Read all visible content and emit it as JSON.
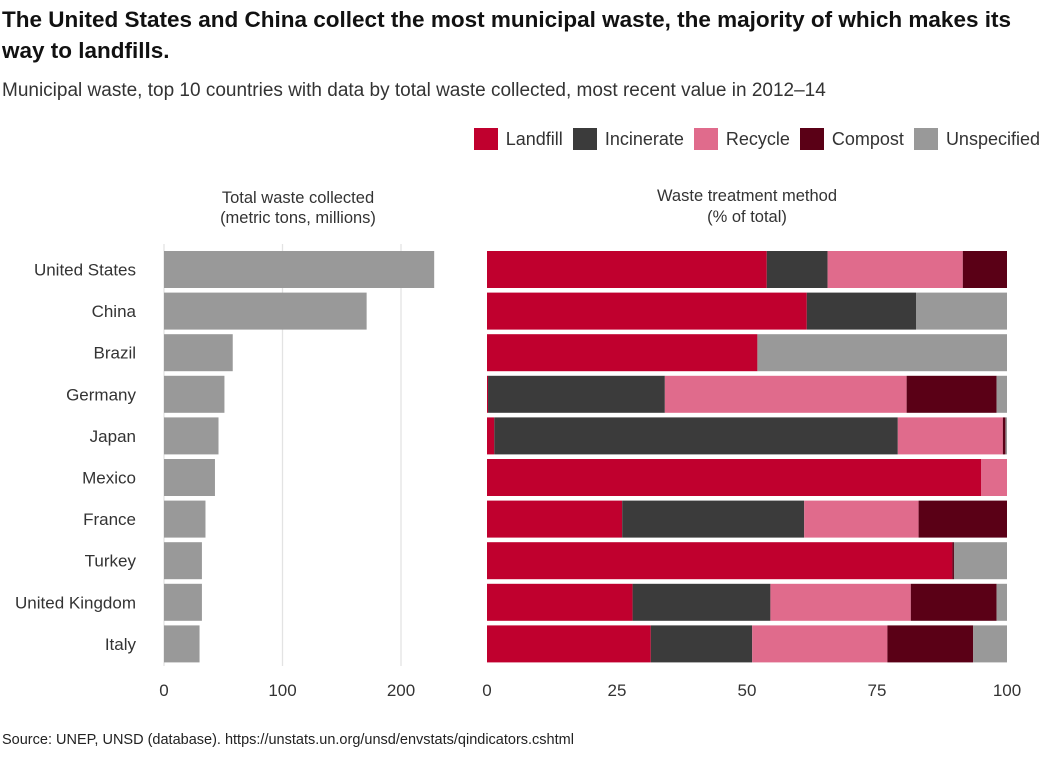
{
  "title": "The United States and China collect the most municipal waste, the majority of which makes its way to landfills.",
  "subtitle": "Municipal waste, top 10 countries with data by total waste collected, most recent value in 2012–14",
  "source": "Source: UNEP, UNSD (database). https://unstats.un.org/unsd/envstats/qindicators.cshtml",
  "legend": [
    {
      "label": "Landfill",
      "color": "#c0002e"
    },
    {
      "label": "Incinerate",
      "color": "#3b3b3b"
    },
    {
      "label": "Recycle",
      "color": "#e06b8c"
    },
    {
      "label": "Compost",
      "color": "#5a0016"
    },
    {
      "label": "Unspecified",
      "color": "#999999"
    }
  ],
  "chart_data": [
    {
      "type": "bar",
      "orientation": "horizontal",
      "title": "Total waste collected",
      "title_line2": "(metric tons, millions)",
      "categories": [
        "United States",
        "China",
        "Brazil",
        "Germany",
        "Japan",
        "Mexico",
        "France",
        "Turkey",
        "United Kingdom",
        "Italy"
      ],
      "values": [
        228,
        171,
        58,
        51,
        46,
        43,
        35,
        32,
        32,
        30
      ],
      "xlim": [
        0,
        240
      ],
      "xticks": [
        0,
        100,
        200
      ],
      "color": "#999999",
      "grid": true
    },
    {
      "type": "bar",
      "orientation": "horizontal",
      "stacked": true,
      "title": "Waste treatment method",
      "title_line2": "(% of total)",
      "categories": [
        "United States",
        "China",
        "Brazil",
        "Germany",
        "Japan",
        "Mexico",
        "France",
        "Turkey",
        "United Kingdom",
        "Italy"
      ],
      "xlim": [
        0,
        100
      ],
      "xticks": [
        0,
        25,
        50,
        75,
        100
      ],
      "series": [
        {
          "name": "Landfill",
          "color": "#c0002e",
          "values": [
            53.8,
            61.5,
            52.0,
            0.2,
            1.4,
            95.0,
            26.0,
            89.5,
            28.0,
            31.5
          ]
        },
        {
          "name": "Incinerate",
          "color": "#3b3b3b",
          "values": [
            11.7,
            21.0,
            0,
            34.0,
            77.6,
            0,
            35.0,
            0,
            26.5,
            19.5
          ]
        },
        {
          "name": "Recycle",
          "color": "#e06b8c",
          "values": [
            26.0,
            0,
            0,
            46.5,
            20.2,
            5.0,
            22.0,
            0,
            27.0,
            26.0
          ]
        },
        {
          "name": "Compost",
          "color": "#5a0016",
          "values": [
            8.5,
            0,
            0,
            17.3,
            0.5,
            0,
            17.0,
            0.3,
            16.5,
            16.5
          ]
        },
        {
          "name": "Unspecified",
          "color": "#999999",
          "values": [
            0,
            17.5,
            48.0,
            2.0,
            0.3,
            0,
            0,
            10.2,
            2.0,
            6.5
          ]
        }
      ]
    }
  ]
}
